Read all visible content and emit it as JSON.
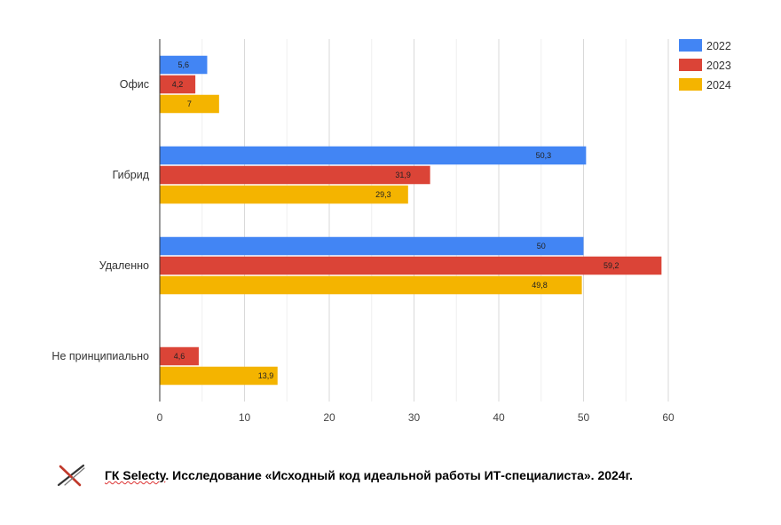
{
  "chart_data": {
    "type": "bar",
    "orientation": "horizontal",
    "categories": [
      "Офис",
      "Гибрид",
      "Удаленно",
      "Не принципиально"
    ],
    "series": [
      {
        "name": "2022",
        "color": "#4285f4",
        "values": [
          5.6,
          50.3,
          50,
          null
        ],
        "labels": [
          "5,6",
          "50,3",
          "50",
          ""
        ]
      },
      {
        "name": "2023",
        "color": "#db4437",
        "values": [
          4.2,
          31.9,
          59.2,
          4.6
        ],
        "labels": [
          "4,2",
          "31,9",
          "59,2",
          "4,6"
        ]
      },
      {
        "name": "2024",
        "color": "#f4b400",
        "values": [
          7,
          29.3,
          49.8,
          13.9
        ],
        "labels": [
          "7",
          "29,3",
          "49,8",
          "13,9"
        ]
      }
    ],
    "xlim": [
      0,
      60
    ],
    "xticks": [
      "0",
      "10",
      "20",
      "30",
      "40",
      "50",
      "60"
    ],
    "grid": true,
    "legend_position": "top-right"
  },
  "footer": {
    "brand": "ГК Selecty",
    "caption": ". Исследование «Исходный код идеальной работы ИТ-специалиста». 2024г.",
    "logo_icon": "x-logo-icon"
  }
}
